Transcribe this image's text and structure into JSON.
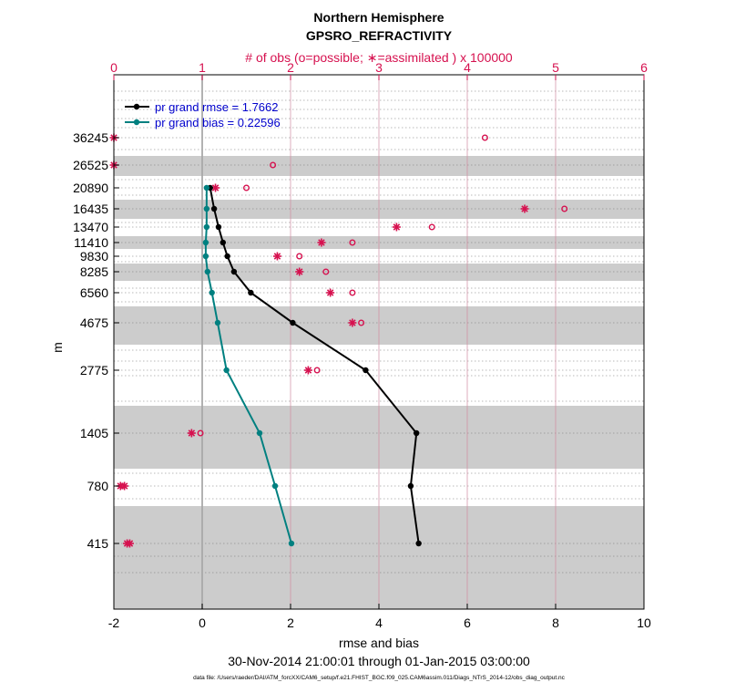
{
  "chart_data": {
    "type": "line",
    "title": "Northern Hemisphere",
    "subtitle": "GPSRO_REFRACTIVITY",
    "top_axis_label": "# of obs (o=possible; ∗=assimilated ) x 100000",
    "xlabel": "rmse and bias",
    "ylabel": "m",
    "time_range": "30-Nov-2014 21:00:01 through 01-Jan-2015 03:00:00",
    "footnote": "data file: /Users/raeder/DAI/ATM_forcXX/CAM6_setup/f.e21.FHIST_BGC.f09_025.CAM6assim.011/Diags_NTrS_2014-12/obs_diag_output.nc",
    "xlim": [
      -2,
      10
    ],
    "x_ticks": [
      "-2",
      "0",
      "2",
      "4",
      "6",
      "8",
      "10"
    ],
    "top_xlim": [
      0,
      6
    ],
    "top_ticks": [
      "0",
      "1",
      "2",
      "3",
      "4",
      "5",
      "6"
    ],
    "y_ticks": [
      "36245",
      "26525",
      "20890",
      "16435",
      "13470",
      "11410",
      "9830",
      "8285",
      "6560",
      "4675",
      "2775",
      "1405",
      "780",
      "415"
    ],
    "grid": true,
    "legend_position": "top-left",
    "colors": {
      "rmse": "#000000",
      "bias": "#008080",
      "obs": "#d6114f",
      "band": "#cccccc",
      "zero_line": "#aaaaaa"
    },
    "series": [
      {
        "name": "pr grand rmse = 1.7662",
        "x": [
          0.18,
          0.27,
          0.37,
          0.47,
          0.57,
          0.72,
          1.1,
          2.05,
          3.7,
          4.85,
          4.72,
          4.9
        ],
        "y": [
          "20890",
          "16435",
          "13470",
          "11410",
          "9830",
          "8285",
          "6560",
          "4675",
          "2775",
          "1405",
          "780",
          "415"
        ]
      },
      {
        "name": "pr grand bias = 0.22596",
        "x": [
          0.1,
          0.1,
          0.1,
          0.08,
          0.08,
          0.12,
          0.22,
          0.35,
          0.55,
          1.3,
          1.65,
          2.02
        ],
        "y": [
          "20890",
          "16435",
          "13470",
          "11410",
          "9830",
          "8285",
          "6560",
          "4675",
          "2775",
          "1405",
          "780",
          "415"
        ]
      }
    ],
    "obs_possible": {
      "x": [
        4.2,
        1.8,
        1.5,
        5.1,
        3.6,
        2.7,
        2.1,
        2.4,
        2.7,
        2.8,
        2.3,
        0.98
      ],
      "y": [
        "36245",
        "26525",
        "20890",
        "16435",
        "13470",
        "11410",
        "9830",
        "8285",
        "6560",
        "4675",
        "2775",
        "1405"
      ]
    },
    "obs_assimilated": {
      "x": [
        0.0,
        0.0,
        1.15,
        4.65,
        3.2,
        2.35,
        1.85,
        2.1,
        2.45,
        2.7,
        2.2,
        0.88,
        0.12,
        0.18
      ],
      "y": [
        "36245",
        "26525",
        "20890",
        "16435",
        "13470",
        "11410",
        "9830",
        "8285",
        "6560",
        "4675",
        "2775",
        "1405",
        "780",
        "415"
      ]
    }
  }
}
